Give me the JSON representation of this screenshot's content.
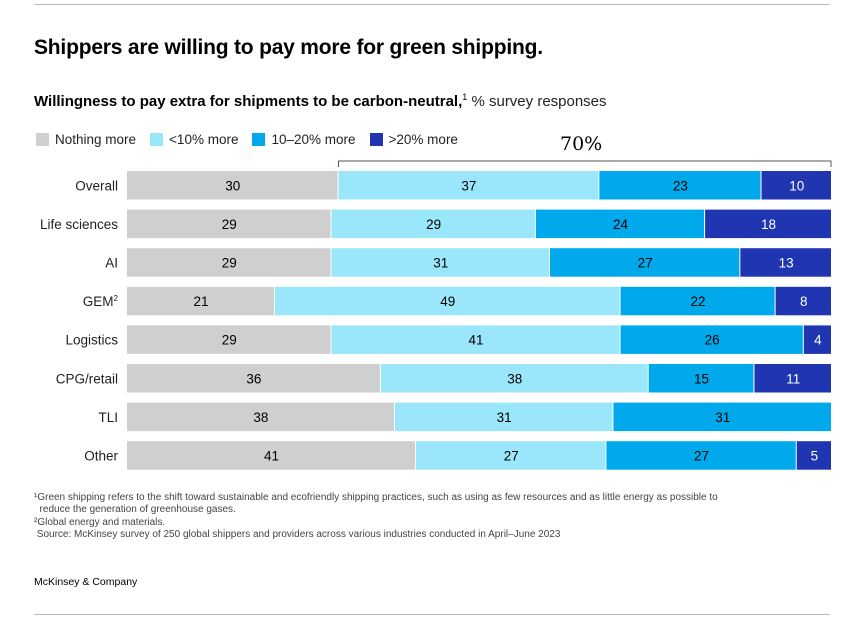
{
  "header": {
    "title": "Shippers are willing to pay more for green shipping.",
    "subtitle_bold": "Willingness to pay extra for shipments to be carbon-neutral,",
    "subtitle_sup": "1",
    "subtitle_unit": "% survey responses"
  },
  "chart_data": {
    "type": "bar",
    "orientation": "horizontal",
    "stacked": true,
    "categories": [
      "Overall",
      "Life sciences",
      "AI",
      "GEM",
      "Logistics",
      "CPG/retail",
      "TLI",
      "Other"
    ],
    "category_superscripts": {
      "GEM": "2"
    },
    "series": [
      {
        "name": "Nothing more",
        "color": "#cfcfcf",
        "values": [
          30,
          29,
          29,
          21,
          29,
          36,
          38,
          41
        ]
      },
      {
        "name": "<10% more",
        "color": "#9ae6fb",
        "values": [
          37,
          29,
          31,
          49,
          41,
          38,
          31,
          27
        ]
      },
      {
        "name": "10–20% more",
        "color": "#00a8ec",
        "values": [
          23,
          24,
          27,
          22,
          26,
          15,
          31,
          27
        ]
      },
      {
        "name": ">20% more",
        "color": "#1f35b2",
        "values": [
          10,
          18,
          13,
          8,
          4,
          11,
          null,
          5
        ]
      }
    ],
    "annotation": "70%",
    "annotation_spans_series": [
      "<10% more",
      "10–20% more",
      ">20% more"
    ],
    "annotation_row": "Overall",
    "label_colors": {
      "Nothing more": "#000000",
      "<10% more": "#000000",
      "10–20% more": "#000000",
      ">20% more": "#ffffff"
    },
    "xlim": [
      0,
      100
    ],
    "legend_position": "top-left",
    "grid": false
  },
  "footnotes": [
    "¹Green shipping refers to the shift toward sustainable and ecofriendly shipping practices, such as using as few resources and as little energy as possible to",
    "  reduce the generation of greenhouse gases.",
    "²Global energy and materials.",
    " Source: McKinsey survey of 250 global shippers and providers across various industries conducted in April–June 2023"
  ],
  "brand": "McKinsey & Company"
}
